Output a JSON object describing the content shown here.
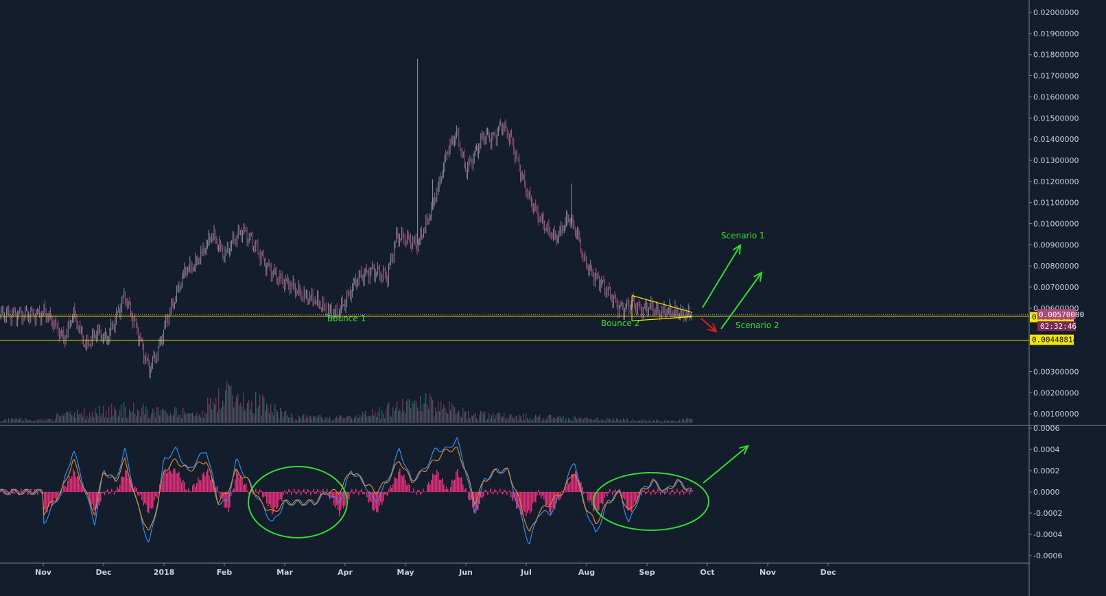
{
  "chart_data": [
    {
      "type": "candlestick",
      "title": "",
      "x": [
        "Nov",
        "Dec",
        "2018",
        "Feb",
        "Mar",
        "Apr",
        "May",
        "Jun",
        "Jul",
        "Aug",
        "Sep",
        "Oct",
        "Nov",
        "Dec"
      ],
      "ylim": [
        0,
        0.0207
      ],
      "y_ticks": [
        "0.02000000",
        "0.01900000",
        "0.01800000",
        "0.01700000",
        "0.01600000",
        "0.01500000",
        "0.01400000",
        "0.01300000",
        "0.01200000",
        "0.01100000",
        "0.01000000",
        "0.00900000",
        "0.00800000",
        "0.00700000",
        "0.00600000",
        "0.00300000",
        "0.00200000",
        "0.00100000"
      ],
      "y_tick_values": [
        0.02,
        0.019,
        0.018,
        0.017,
        0.016,
        0.015,
        0.014,
        0.013,
        0.012,
        0.011,
        0.01,
        0.009,
        0.008,
        0.007,
        0.006,
        0.003,
        0.002,
        0.001
      ],
      "price_path": [
        [
          0,
          0.0059
        ],
        [
          0.2,
          0.0052
        ],
        [
          0.35,
          0.0045
        ],
        [
          0.5,
          0.0058
        ],
        [
          0.7,
          0.0042
        ],
        [
          0.9,
          0.0049
        ],
        [
          1.05,
          0.0045
        ],
        [
          1.2,
          0.0055
        ],
        [
          1.35,
          0.0066
        ],
        [
          1.55,
          0.005
        ],
        [
          1.75,
          0.0031
        ],
        [
          1.9,
          0.004
        ],
        [
          2.05,
          0.0055
        ],
        [
          2.2,
          0.0066
        ],
        [
          2.35,
          0.0078
        ],
        [
          2.5,
          0.008
        ],
        [
          2.65,
          0.0087
        ],
        [
          2.8,
          0.0095
        ],
        [
          3.0,
          0.0085
        ],
        [
          3.15,
          0.0092
        ],
        [
          3.3,
          0.0097
        ],
        [
          3.5,
          0.009
        ],
        [
          3.7,
          0.008
        ],
        [
          3.9,
          0.0074
        ],
        [
          4.1,
          0.0071
        ],
        [
          4.3,
          0.0066
        ],
        [
          4.5,
          0.0064
        ],
        [
          4.7,
          0.0059
        ],
        [
          4.85,
          0.0057
        ],
        [
          5.0,
          0.0063
        ],
        [
          5.2,
          0.0074
        ],
        [
          5.45,
          0.0078
        ],
        [
          5.7,
          0.0075
        ],
        [
          5.85,
          0.0094
        ],
        [
          6.0,
          0.0093
        ],
        [
          6.2,
          0.009
        ],
        [
          6.4,
          0.0104
        ],
        [
          6.55,
          0.0118
        ],
        [
          6.7,
          0.0135
        ],
        [
          6.85,
          0.0143
        ],
        [
          7.0,
          0.0125
        ],
        [
          7.15,
          0.0133
        ],
        [
          7.3,
          0.0142
        ],
        [
          7.45,
          0.014
        ],
        [
          7.6,
          0.0147
        ],
        [
          7.75,
          0.014
        ],
        [
          7.9,
          0.0125
        ],
        [
          8.05,
          0.0112
        ],
        [
          8.2,
          0.0104
        ],
        [
          8.35,
          0.0097
        ],
        [
          8.5,
          0.0093
        ],
        [
          8.7,
          0.0103
        ],
        [
          8.85,
          0.0095
        ],
        [
          8.95,
          0.0083
        ],
        [
          9.1,
          0.0076
        ],
        [
          9.25,
          0.0072
        ],
        [
          9.4,
          0.0066
        ],
        [
          9.55,
          0.006
        ],
        [
          9.65,
          0.006
        ],
        [
          9.75,
          0.0063
        ],
        [
          9.9,
          0.0059
        ],
        [
          10.05,
          0.0061
        ],
        [
          10.2,
          0.0058
        ],
        [
          10.35,
          0.0059
        ],
        [
          10.5,
          0.0058
        ],
        [
          10.6,
          0.0057
        ],
        [
          10.75,
          0.0057
        ]
      ],
      "spikes": [
        [
          6.2,
          0.0178
        ],
        [
          6.45,
          0.0121
        ],
        [
          8.75,
          0.0119
        ]
      ],
      "volume": [
        [
          0.2,
          0.0004
        ],
        [
          1.25,
          0.0009
        ],
        [
          2.5,
          0.0006
        ],
        [
          3.1,
          0.0021
        ],
        [
          4.1,
          0.0004
        ],
        [
          5.1,
          0.0003
        ],
        [
          6.2,
          0.0013
        ],
        [
          6.5,
          0.0012
        ],
        [
          7.0,
          0.0006
        ],
        [
          7.8,
          0.0004
        ],
        [
          8.7,
          0.0003
        ],
        [
          9.5,
          0.0002
        ],
        [
          10.5,
          0.0001
        ]
      ],
      "horizontal_levels": [
        {
          "value": 0.00562663,
          "color": "#f5e400",
          "label": "0.00562663"
        },
        {
          "value": 0.00448814,
          "color": "#f5e400",
          "label": "0.00448814"
        }
      ],
      "last_price": {
        "value": 0.0057,
        "label": "0.00570000",
        "countdown": "02:32:46",
        "color": "#b04878"
      },
      "triangle": {
        "upper": [
          [
            9.75,
            0.0066
          ],
          [
            10.75,
            0.0058
          ]
        ],
        "lower": [
          [
            9.75,
            0.0054
          ],
          [
            10.75,
            0.0056
          ]
        ]
      },
      "annotations": {
        "bounce1": "Bounce 1",
        "bounce2": "Bounce 2",
        "scenario1": "Scenario 1",
        "scenario2": "Scenario 2"
      }
    },
    {
      "type": "line",
      "subtype": "oscillator",
      "ylim": [
        -0.00065,
        0.00065
      ],
      "y_ticks": [
        "0.0006",
        "0.0004",
        "0.0002",
        "0.0000",
        "-0.0002",
        "-0.0004",
        "-0.0006"
      ],
      "y_tick_values": [
        0.0006,
        0.0004,
        0.0002,
        0,
        -0.0002,
        -0.0004,
        -0.0006
      ],
      "series": [
        {
          "color": "#2f8ff0",
          "values": [
            [
              0,
              -0.0003
            ],
            [
              0.3,
              0.0
            ],
            [
              0.5,
              0.0004
            ],
            [
              0.7,
              0.0
            ],
            [
              0.85,
              -0.0003
            ],
            [
              1.0,
              0.0002
            ],
            [
              1.2,
              0.0001
            ],
            [
              1.35,
              0.0004
            ],
            [
              1.55,
              -0.0001
            ],
            [
              1.75,
              -0.0005
            ],
            [
              1.9,
              -0.0001
            ],
            [
              2.0,
              0.0003
            ],
            [
              2.2,
              0.0004
            ],
            [
              2.4,
              0.0002
            ],
            [
              2.7,
              0.0004
            ],
            [
              2.9,
              -0.0001
            ],
            [
              3.05,
              -0.0001
            ],
            [
              3.2,
              0.0003
            ],
            [
              3.4,
              0.0001
            ],
            [
              3.6,
              -0.0001
            ],
            [
              3.8,
              -0.0003
            ],
            [
              4.0,
              -0.0001
            ],
            [
              4.2,
              -0.0001
            ],
            [
              4.5,
              -0.0001
            ],
            [
              4.7,
              0.0
            ],
            [
              4.9,
              -0.0001
            ],
            [
              5.1,
              0.0002
            ],
            [
              5.3,
              0.0001
            ],
            [
              5.5,
              -0.0001
            ],
            [
              5.7,
              0.0001
            ],
            [
              5.9,
              0.0004
            ],
            [
              6.1,
              0.0001
            ],
            [
              6.3,
              0.0002
            ],
            [
              6.5,
              0.0004
            ],
            [
              6.7,
              0.0004
            ],
            [
              6.85,
              0.0005
            ],
            [
              7.0,
              0.0002
            ],
            [
              7.15,
              -0.0002
            ],
            [
              7.3,
              0.0001
            ],
            [
              7.5,
              0.0002
            ],
            [
              7.7,
              0.0002
            ],
            [
              7.9,
              -0.0002
            ],
            [
              8.05,
              -0.0005
            ],
            [
              8.2,
              -0.0002
            ],
            [
              8.4,
              -0.0002
            ],
            [
              8.6,
              0.0
            ],
            [
              8.8,
              0.0003
            ],
            [
              8.95,
              -0.0001
            ],
            [
              9.15,
              -0.0004
            ],
            [
              9.35,
              -0.0001
            ],
            [
              9.55,
              0.0
            ],
            [
              9.7,
              -0.0003
            ],
            [
              9.9,
              0.0
            ],
            [
              10.1,
              0.0001
            ],
            [
              10.3,
              0.0
            ],
            [
              10.5,
              0.0001
            ],
            [
              10.75,
              0.0
            ]
          ]
        },
        {
          "color": "#e08a2a",
          "values": [
            [
              0,
              -0.0002
            ],
            [
              0.3,
              0.0
            ],
            [
              0.5,
              0.0003
            ],
            [
              0.7,
              0.0
            ],
            [
              0.85,
              -0.0002
            ],
            [
              1.0,
              0.0002
            ],
            [
              1.2,
              0.0001
            ],
            [
              1.35,
              0.0003
            ],
            [
              1.55,
              -0.0001
            ],
            [
              1.75,
              -0.0004
            ],
            [
              1.9,
              -0.0001
            ],
            [
              2.0,
              0.0002
            ],
            [
              2.2,
              0.0003
            ],
            [
              2.4,
              0.0002
            ],
            [
              2.7,
              0.0003
            ],
            [
              2.9,
              -0.0001
            ],
            [
              3.05,
              0.0
            ],
            [
              3.2,
              0.0002
            ],
            [
              3.4,
              0.0001
            ],
            [
              3.6,
              -0.0001
            ],
            [
              3.8,
              -0.0002
            ],
            [
              4.0,
              -0.0001
            ],
            [
              4.2,
              -0.0001
            ],
            [
              4.5,
              -0.0001
            ],
            [
              4.7,
              0.0
            ],
            [
              4.9,
              0.0
            ],
            [
              5.1,
              0.0002
            ],
            [
              5.3,
              0.0001
            ],
            [
              5.5,
              0.0
            ],
            [
              5.7,
              0.0001
            ],
            [
              5.9,
              0.0003
            ],
            [
              6.1,
              0.0001
            ],
            [
              6.3,
              0.0002
            ],
            [
              6.5,
              0.0003
            ],
            [
              6.7,
              0.0004
            ],
            [
              6.85,
              0.0004
            ],
            [
              7.0,
              0.0002
            ],
            [
              7.15,
              -0.0001
            ],
            [
              7.3,
              0.0001
            ],
            [
              7.5,
              0.0002
            ],
            [
              7.7,
              0.0002
            ],
            [
              7.9,
              -0.0001
            ],
            [
              8.05,
              -0.0004
            ],
            [
              8.2,
              -0.0002
            ],
            [
              8.4,
              -0.0001
            ],
            [
              8.6,
              0.0
            ],
            [
              8.8,
              0.0002
            ],
            [
              8.95,
              -0.0001
            ],
            [
              9.15,
              -0.0003
            ],
            [
              9.35,
              -0.0001
            ],
            [
              9.55,
              0.0
            ],
            [
              9.7,
              -0.0002
            ],
            [
              9.9,
              0.0
            ],
            [
              10.1,
              0.0001
            ],
            [
              10.3,
              0.0
            ],
            [
              10.5,
              0.0001
            ],
            [
              10.75,
              0.0
            ]
          ]
        }
      ],
      "histogram_color": "#e0307a"
    }
  ]
}
